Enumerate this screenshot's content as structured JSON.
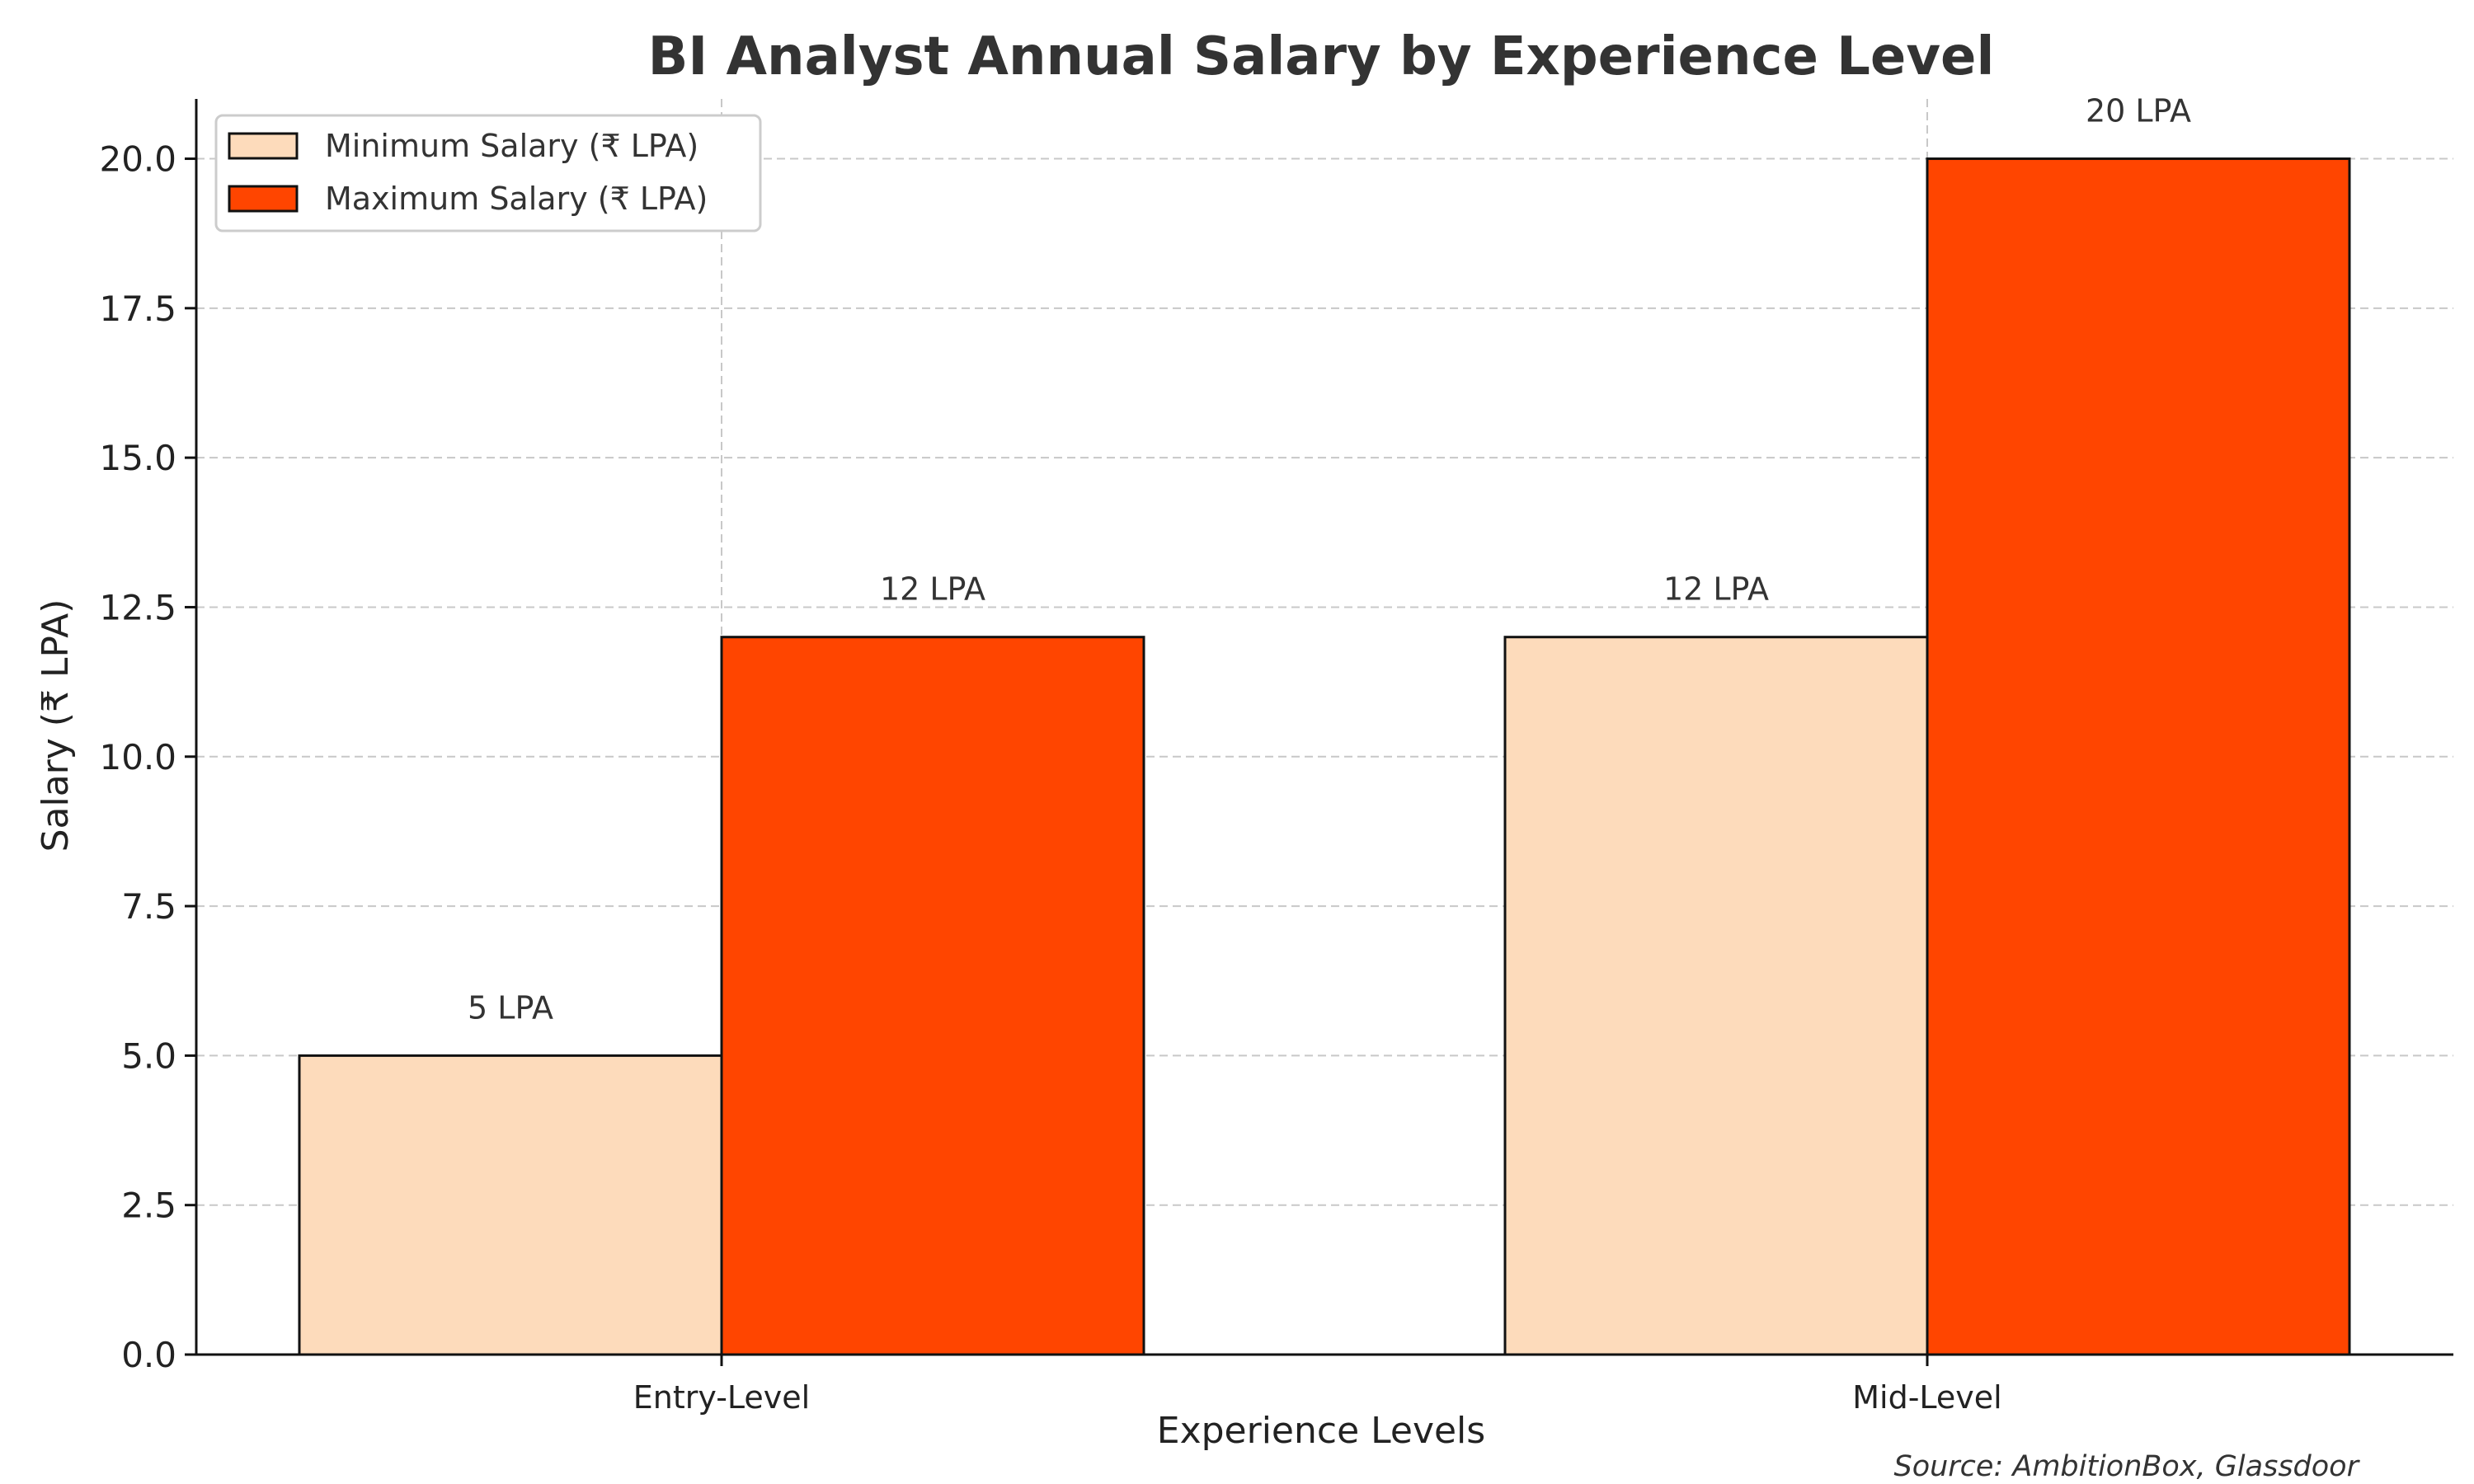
{
  "chart_data": {
    "type": "bar",
    "title": "BI Analyst Annual Salary by Experience Level",
    "xlabel": "Experience Levels",
    "ylabel": "Salary (₹ LPA)",
    "categories": [
      "Entry-Level",
      "Mid-Level"
    ],
    "series": [
      {
        "name": "Minimum Salary (₹ LPA)",
        "values": [
          5,
          12
        ],
        "labels": [
          "5 LPA",
          "12 LPA"
        ],
        "color": "#FDDBBB"
      },
      {
        "name": "Maximum Salary (₹ LPA)",
        "values": [
          12,
          20
        ],
        "labels": [
          "12 LPA",
          "20 LPA"
        ],
        "color": "#FF4500"
      }
    ],
    "ylim": [
      0,
      21
    ],
    "yticks": [
      0,
      2.5,
      5,
      7.5,
      10,
      12.5,
      15,
      17.5,
      20
    ],
    "ytick_labels": [
      "0.0",
      "2.5",
      "5.0",
      "7.5",
      "10.0",
      "12.5",
      "15.0",
      "17.5",
      "20.0"
    ],
    "grid": true,
    "legend_position": "top-left",
    "source": "Source: AmbitionBox, Glassdoor"
  }
}
